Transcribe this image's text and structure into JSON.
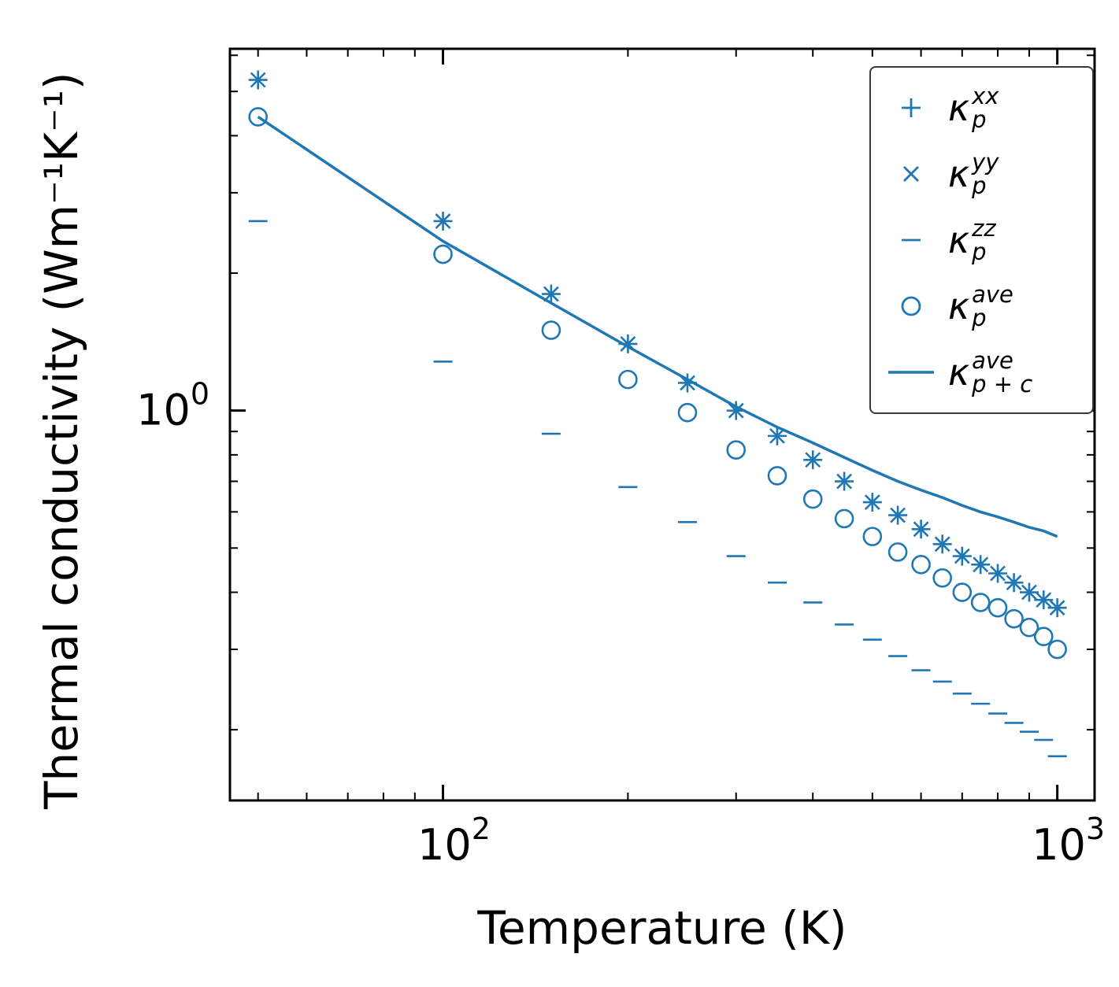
{
  "figure": {
    "background": "#ffffff",
    "axes_color": "#000000"
  },
  "chart_data": {
    "type": "scatter",
    "title": "",
    "x_label": "Temperature (K)",
    "y_label": "Thermal conductivity (Wm⁻¹K⁻¹)",
    "x_scale": "log",
    "y_scale": "log",
    "xlim": [
      45,
      1150
    ],
    "ylim": [
      0.14,
      6.2
    ],
    "x_ticks": [
      {
        "value": 100,
        "label": "10^2"
      },
      {
        "value": 1000,
        "label": "10^3"
      }
    ],
    "y_ticks": [
      {
        "value": 1,
        "label": "10^0"
      }
    ],
    "grid": false,
    "legend_position": "upper right",
    "color": "#1f77b4",
    "temperatures": [
      50,
      100,
      150,
      200,
      250,
      300,
      350,
      400,
      450,
      500,
      550,
      600,
      650,
      700,
      750,
      800,
      850,
      900,
      950,
      1000
    ],
    "series": [
      {
        "name": "kappa_p_xx",
        "marker": "plus",
        "legend": {
          "symbol": "κ",
          "sup": "xx",
          "sub": "p"
        },
        "values": [
          5.3,
          2.6,
          1.8,
          1.4,
          1.15,
          1.0,
          0.88,
          0.78,
          0.7,
          0.63,
          0.59,
          0.55,
          0.51,
          0.48,
          0.46,
          0.44,
          0.42,
          0.4,
          0.385,
          0.37
        ]
      },
      {
        "name": "kappa_p_yy",
        "marker": "x",
        "legend": {
          "symbol": "κ",
          "sup": "yy",
          "sub": "p"
        },
        "values": [
          5.3,
          2.6,
          1.8,
          1.4,
          1.15,
          1.0,
          0.88,
          0.78,
          0.7,
          0.63,
          0.59,
          0.55,
          0.51,
          0.48,
          0.46,
          0.44,
          0.42,
          0.4,
          0.385,
          0.37
        ]
      },
      {
        "name": "kappa_p_zz",
        "marker": "hline",
        "legend": {
          "symbol": "κ",
          "sup": "zz",
          "sub": "p"
        },
        "values": [
          2.6,
          1.28,
          0.89,
          0.68,
          0.57,
          0.48,
          0.42,
          0.38,
          0.34,
          0.315,
          0.29,
          0.27,
          0.255,
          0.24,
          0.228,
          0.217,
          0.207,
          0.198,
          0.19,
          0.175
        ]
      },
      {
        "name": "kappa_p_ave",
        "marker": "circle",
        "legend": {
          "symbol": "κ",
          "sup": "ave",
          "sub": "p"
        },
        "values": [
          4.4,
          2.2,
          1.5,
          1.17,
          0.99,
          0.82,
          0.72,
          0.64,
          0.58,
          0.53,
          0.49,
          0.46,
          0.43,
          0.4,
          0.38,
          0.37,
          0.35,
          0.335,
          0.32,
          0.3
        ]
      },
      {
        "name": "kappa_p_plus_c_ave",
        "marker": "line",
        "legend": {
          "symbol": "κ",
          "sup": "ave",
          "sub": "p + c"
        },
        "values": [
          4.4,
          2.35,
          1.72,
          1.38,
          1.17,
          1.02,
          0.92,
          0.85,
          0.79,
          0.74,
          0.7,
          0.67,
          0.645,
          0.62,
          0.6,
          0.585,
          0.57,
          0.555,
          0.545,
          0.53
        ]
      }
    ]
  }
}
